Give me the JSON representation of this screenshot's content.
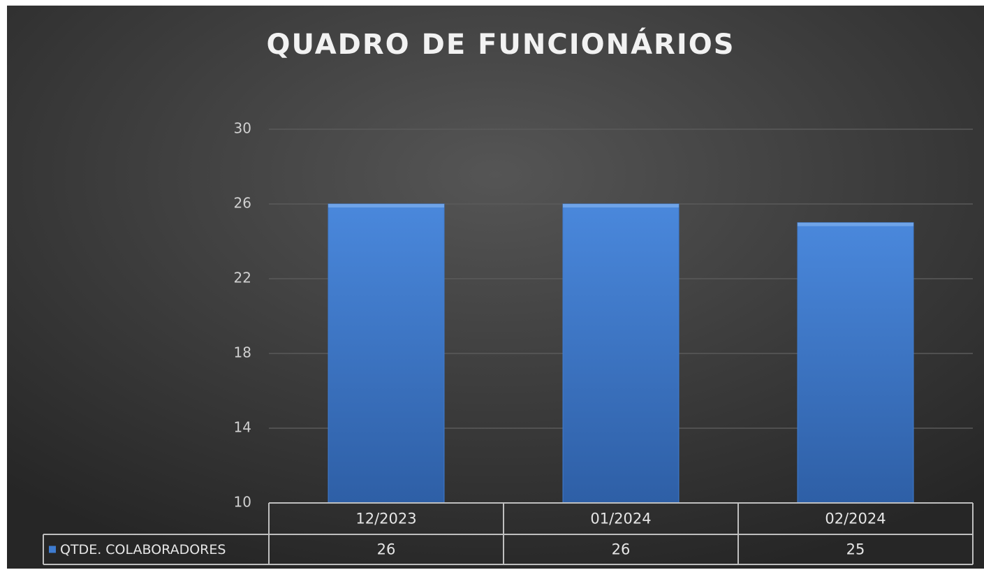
{
  "chart_data": {
    "type": "bar",
    "title": "QUADRO DE FUNCIONÁRIOS",
    "categories": [
      "12/2023",
      "01/2024",
      "02/2024"
    ],
    "series": [
      {
        "name": "QTDE. COLABORADORES",
        "color": "#3f7cd0",
        "values": [
          26,
          26,
          25
        ]
      }
    ],
    "ylim": [
      10,
      30
    ],
    "yticks": [
      10,
      14,
      18,
      22,
      26,
      30
    ],
    "grid": true,
    "data_table": true
  }
}
